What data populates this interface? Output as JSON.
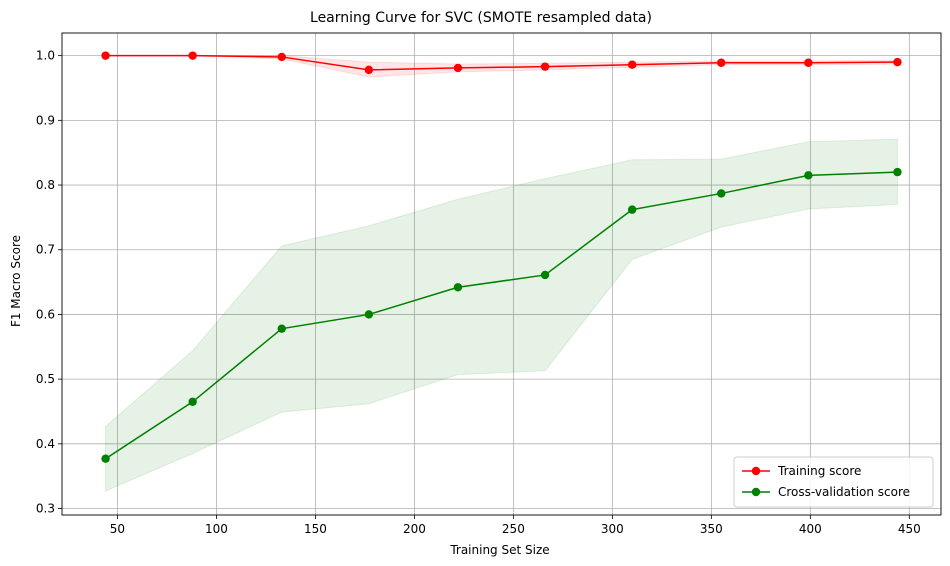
{
  "chart_data": {
    "type": "line",
    "title": "Learning Curve for SVC (SMOTE resampled data)",
    "xlabel": "Training Set Size",
    "ylabel": "F1 Macro Score",
    "xlim": [
      22,
      466
    ],
    "ylim": [
      0.29,
      1.035
    ],
    "xticks": [
      50,
      100,
      150,
      200,
      250,
      300,
      350,
      400,
      450
    ],
    "yticks": [
      0.3,
      0.4,
      0.5,
      0.6,
      0.7,
      0.8,
      0.9,
      1.0
    ],
    "grid": true,
    "legend_position": "bottom-right",
    "x": [
      44,
      88,
      133,
      177,
      222,
      266,
      310,
      355,
      399,
      444
    ],
    "series": [
      {
        "name": "Training score",
        "color": "#ff0000",
        "band_color": "#ff0000",
        "values": [
          1.0,
          1.0,
          0.998,
          0.978,
          0.981,
          0.983,
          0.986,
          0.989,
          0.989,
          0.99
        ],
        "band_lower": [
          1.0,
          1.0,
          0.995,
          0.967,
          0.975,
          0.978,
          0.982,
          0.986,
          0.986,
          0.987
        ],
        "band_upper": [
          1.0,
          1.0,
          1.0,
          0.99,
          0.987,
          0.988,
          0.99,
          0.992,
          0.992,
          0.993
        ]
      },
      {
        "name": "Cross-validation score",
        "color": "#008000",
        "band_color": "#008000",
        "values": [
          0.377,
          0.465,
          0.578,
          0.6,
          0.642,
          0.661,
          0.762,
          0.787,
          0.815,
          0.82
        ],
        "band_lower": [
          0.327,
          0.385,
          0.449,
          0.462,
          0.507,
          0.513,
          0.685,
          0.735,
          0.763,
          0.77
        ],
        "band_upper": [
          0.427,
          0.544,
          0.706,
          0.737,
          0.778,
          0.81,
          0.839,
          0.84,
          0.867,
          0.871
        ]
      }
    ]
  }
}
